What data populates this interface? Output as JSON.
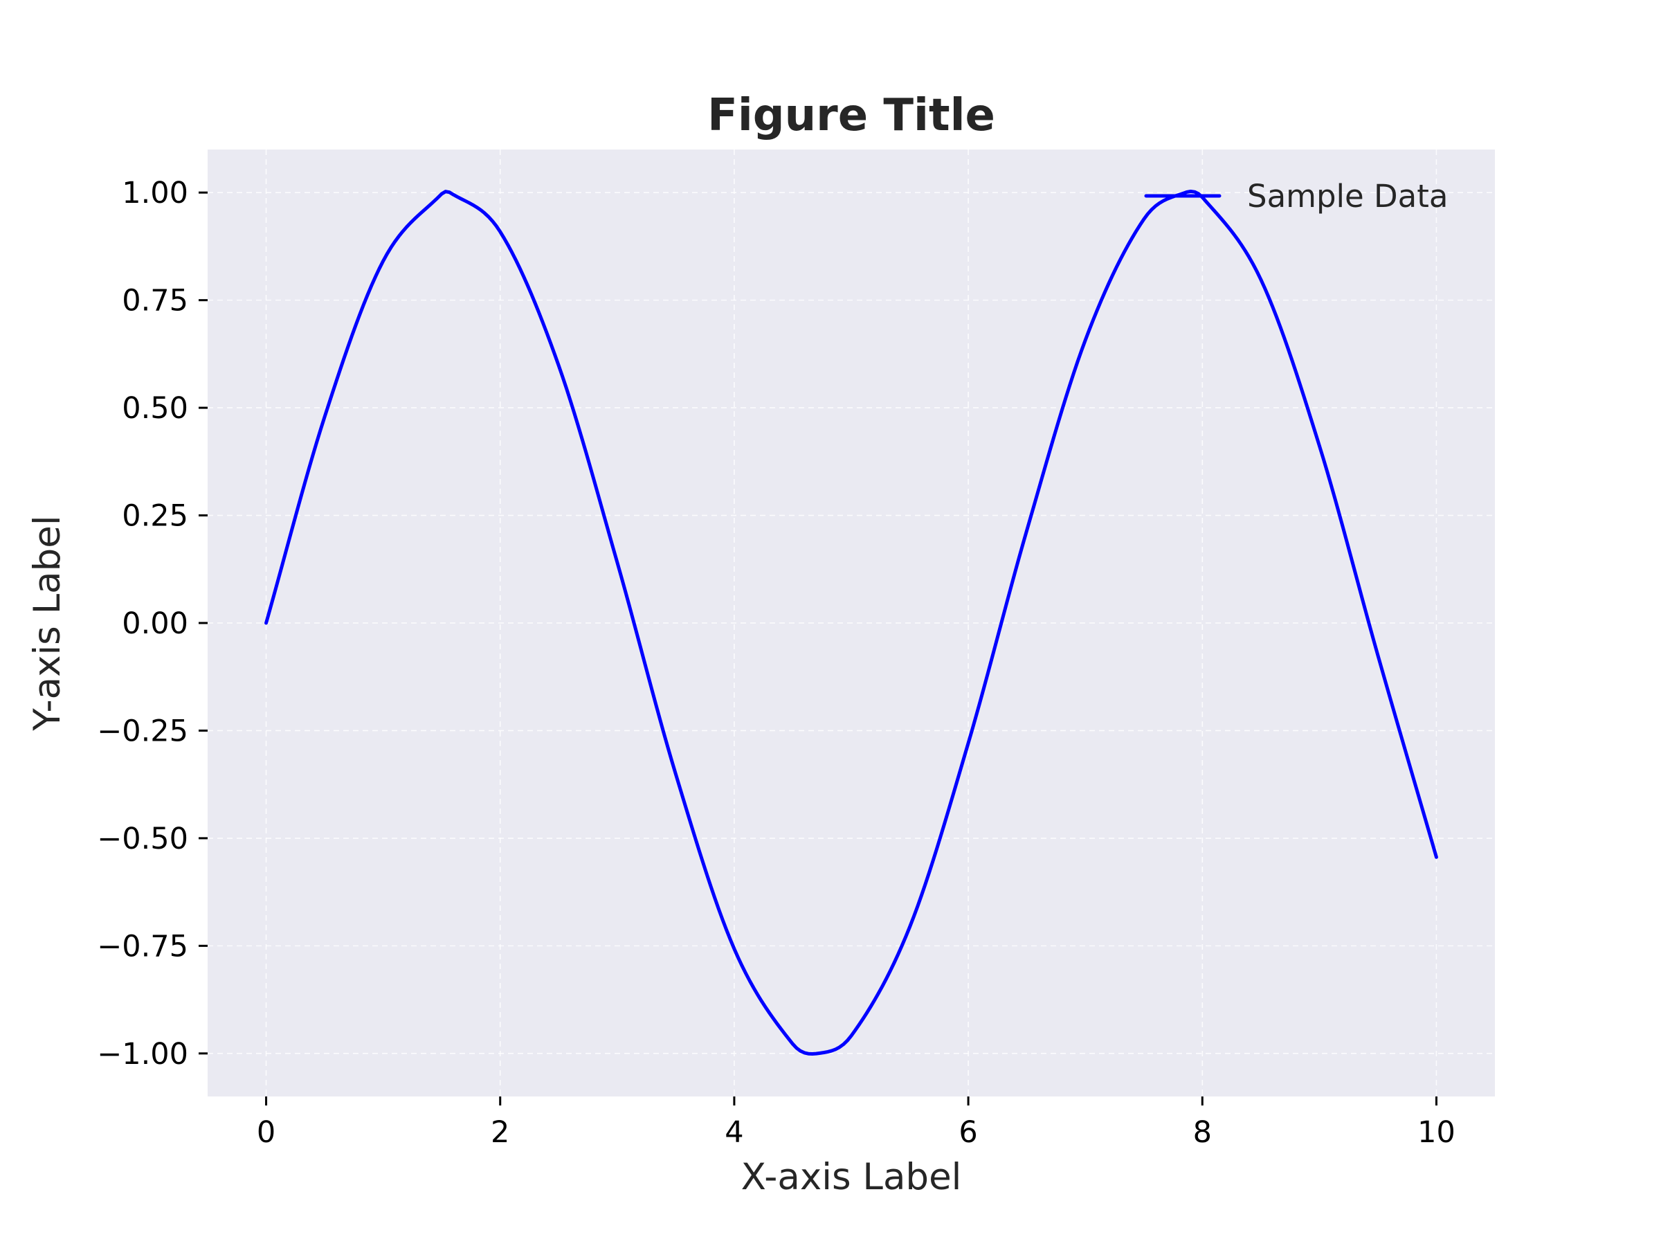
{
  "chart_data": {
    "type": "line",
    "title": "Figure Title",
    "xlabel": "X-axis Label",
    "ylabel": "Y-axis Label",
    "xlim": [
      -0.5,
      10.5
    ],
    "ylim": [
      -1.1,
      1.1
    ],
    "x_ticks": [
      0,
      2,
      4,
      6,
      8,
      10
    ],
    "x_tick_labels": [
      "0",
      "2",
      "4",
      "6",
      "8",
      "10"
    ],
    "y_ticks": [
      1.0,
      0.75,
      0.5,
      0.25,
      0.0,
      -0.25,
      -0.5,
      -0.75,
      -1.0
    ],
    "y_tick_labels": [
      "1.00",
      "0.75",
      "0.50",
      "0.25",
      "0.00",
      "−0.25",
      "−0.50",
      "−0.75",
      "−1.00"
    ],
    "grid": true,
    "grid_style": "dashed",
    "legend_position": "top-right",
    "colors": {
      "plot_background": "#eaeaf2",
      "grid": "#ffffff",
      "line": "#0000ff"
    },
    "series": [
      {
        "name": "Sample Data",
        "color": "#0000ff",
        "x": [
          0,
          0.5,
          1,
          1.5,
          1.5708,
          2,
          2.5,
          3,
          3.5,
          4,
          4.5,
          4.7124,
          5,
          5.5,
          6,
          6.5,
          7,
          7.5,
          7.854,
          8,
          8.5,
          9,
          9.5,
          10
        ],
        "y": [
          0,
          0.479,
          0.841,
          0.997,
          1.0,
          0.909,
          0.598,
          0.141,
          -0.351,
          -0.757,
          -0.978,
          -1.0,
          -0.959,
          -0.706,
          -0.279,
          0.215,
          0.657,
          0.938,
          1.0,
          0.989,
          0.798,
          0.412,
          -0.075,
          -0.544
        ]
      }
    ]
  }
}
